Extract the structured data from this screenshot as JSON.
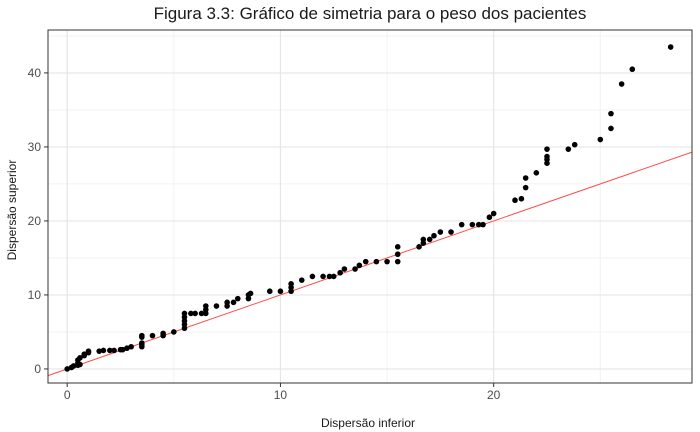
{
  "chart_data": {
    "type": "scatter",
    "title": "Figura 3.3: Gráfico de simetria para o peso dos pacientes",
    "xlabel": "Dispersão inferior",
    "ylabel": "Dispersão superior",
    "xlim": [
      -0.9,
      29.3
    ],
    "ylim": [
      -1.9,
      45.8
    ],
    "x_ticks": [
      0,
      10,
      20
    ],
    "y_ticks": [
      0,
      10,
      20,
      30,
      40
    ],
    "x_tick_labels": [
      "0",
      "10",
      "20"
    ],
    "y_tick_labels": [
      "0",
      "10",
      "20",
      "30",
      "40"
    ],
    "grid": true,
    "reference_line": {
      "slope": 1,
      "intercept": 0,
      "color": "#ff4d4d"
    },
    "point_color": "#000000",
    "points": [
      [
        0.0,
        0.0
      ],
      [
        0.2,
        0.2
      ],
      [
        0.3,
        0.4
      ],
      [
        0.5,
        0.5
      ],
      [
        0.5,
        0.8
      ],
      [
        0.5,
        1.2
      ],
      [
        0.6,
        0.6
      ],
      [
        0.6,
        1.5
      ],
      [
        0.8,
        1.8
      ],
      [
        0.8,
        2.0
      ],
      [
        1.0,
        2.2
      ],
      [
        1.0,
        2.4
      ],
      [
        1.5,
        2.4
      ],
      [
        1.7,
        2.5
      ],
      [
        2.0,
        2.5
      ],
      [
        2.2,
        2.5
      ],
      [
        2.5,
        2.6
      ],
      [
        2.6,
        2.6
      ],
      [
        2.8,
        2.8
      ],
      [
        3.0,
        3.0
      ],
      [
        3.5,
        3.0
      ],
      [
        3.5,
        3.3
      ],
      [
        3.5,
        3.5
      ],
      [
        3.5,
        4.3
      ],
      [
        3.5,
        4.5
      ],
      [
        4.0,
        4.5
      ],
      [
        4.5,
        4.5
      ],
      [
        4.5,
        4.8
      ],
      [
        5.0,
        5.0
      ],
      [
        5.5,
        5.5
      ],
      [
        5.5,
        6.0
      ],
      [
        5.5,
        6.5
      ],
      [
        5.5,
        7.0
      ],
      [
        5.5,
        7.5
      ],
      [
        5.8,
        7.5
      ],
      [
        6.0,
        7.5
      ],
      [
        6.3,
        7.5
      ],
      [
        6.5,
        7.5
      ],
      [
        6.5,
        8.0
      ],
      [
        6.5,
        8.5
      ],
      [
        7.0,
        8.5
      ],
      [
        7.5,
        8.5
      ],
      [
        7.5,
        9.0
      ],
      [
        7.8,
        9.0
      ],
      [
        8.0,
        9.5
      ],
      [
        8.5,
        9.5
      ],
      [
        8.5,
        10.0
      ],
      [
        8.6,
        10.2
      ],
      [
        9.5,
        10.5
      ],
      [
        10.0,
        10.5
      ],
      [
        10.5,
        10.5
      ],
      [
        10.5,
        11.0
      ],
      [
        10.5,
        11.5
      ],
      [
        11.0,
        12.0
      ],
      [
        11.5,
        12.5
      ],
      [
        12.0,
        12.5
      ],
      [
        12.3,
        12.5
      ],
      [
        12.5,
        12.5
      ],
      [
        12.8,
        13.0
      ],
      [
        13.0,
        13.5
      ],
      [
        13.5,
        13.5
      ],
      [
        13.7,
        14.0
      ],
      [
        14.0,
        14.5
      ],
      [
        14.5,
        14.5
      ],
      [
        15.0,
        14.5
      ],
      [
        15.5,
        14.5
      ],
      [
        15.5,
        15.5
      ],
      [
        15.5,
        16.5
      ],
      [
        16.5,
        16.5
      ],
      [
        16.7,
        17.0
      ],
      [
        16.7,
        17.5
      ],
      [
        17.0,
        17.5
      ],
      [
        17.2,
        18.0
      ],
      [
        17.5,
        18.5
      ],
      [
        18.0,
        18.5
      ],
      [
        18.5,
        19.5
      ],
      [
        19.0,
        19.5
      ],
      [
        19.3,
        19.5
      ],
      [
        19.5,
        19.5
      ],
      [
        19.8,
        20.5
      ],
      [
        20.0,
        21.0
      ],
      [
        21.0,
        22.8
      ],
      [
        21.3,
        23.0
      ],
      [
        21.5,
        24.5
      ],
      [
        21.5,
        25.8
      ],
      [
        22.0,
        26.5
      ],
      [
        22.5,
        27.8
      ],
      [
        22.5,
        28.3
      ],
      [
        22.5,
        28.7
      ],
      [
        22.5,
        29.7
      ],
      [
        23.5,
        29.7
      ],
      [
        23.8,
        30.3
      ],
      [
        25.0,
        31.0
      ],
      [
        25.5,
        32.5
      ],
      [
        25.5,
        34.5
      ],
      [
        26.0,
        38.5
      ],
      [
        26.5,
        40.5
      ],
      [
        28.3,
        43.5
      ]
    ]
  }
}
